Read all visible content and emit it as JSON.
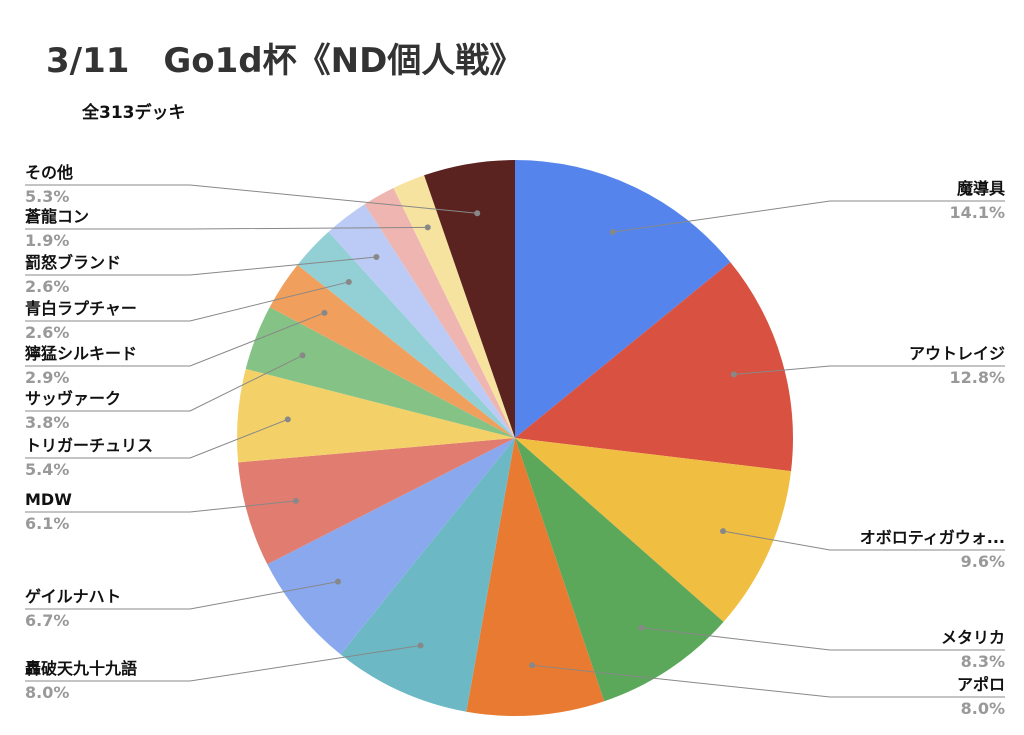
{
  "chart_data": {
    "type": "pie",
    "title": "3/11　Go1d杯《ND個人戦》",
    "subtitle": "全313デッキ",
    "categories": [
      "魔導具",
      "アウトレイジ",
      "オボロティガウォ...",
      "メタリカ",
      "アポロ",
      "轟破天九十九語",
      "ゲイルナハト",
      "MDW",
      "トリガーチュリス",
      "サッヴァーク",
      "獰猛シルキード",
      "青白ラプチャー",
      "罰怒ブランド",
      null,
      "蒼龍コン",
      "その他"
    ],
    "values": [
      14.1,
      12.8,
      9.6,
      8.3,
      8.0,
      8.0,
      6.7,
      6.1,
      5.4,
      3.8,
      2.9,
      2.6,
      2.6,
      1.9,
      1.9,
      5.3
    ],
    "value_labels": [
      "14.1%",
      "12.8%",
      "9.6%",
      "8.3%",
      "8.0%",
      "8.0%",
      "6.7%",
      "6.1%",
      "5.4%",
      "3.8%",
      "2.9%",
      "2.6%",
      "2.6%",
      null,
      "1.9%",
      "5.3%"
    ],
    "colors": [
      "#5585ec",
      "#d95140",
      "#f0be41",
      "#5ba85a",
      "#e97a31",
      "#6cb9c5",
      "#8aa8ee",
      "#e07d70",
      "#f4d168",
      "#85c285",
      "#f09f5d",
      "#93d0d6",
      "#bccbf5",
      "#efb5b1",
      "#f7e3a0",
      "#5a2320"
    ]
  }
}
